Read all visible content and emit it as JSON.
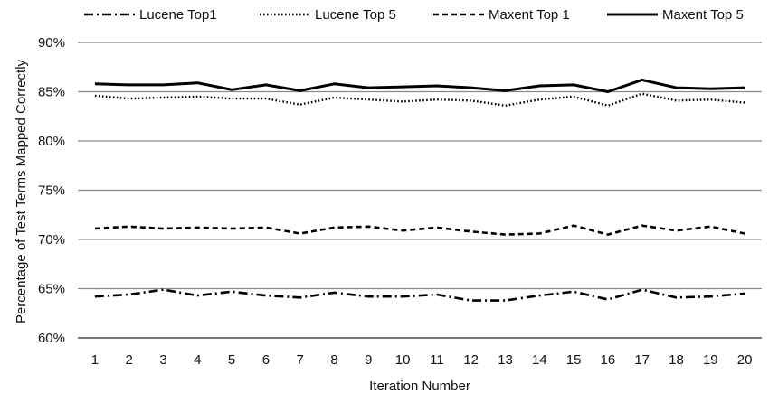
{
  "chart_data": {
    "type": "line",
    "xlabel": "Iteration Number",
    "ylabel": "Percentage of Test Terms Mapped Correctly",
    "ylim": [
      60,
      90
    ],
    "y_ticks": [
      "60%",
      "65%",
      "70%",
      "75%",
      "80%",
      "85%",
      "90%"
    ],
    "y_tick_values": [
      60,
      65,
      70,
      75,
      80,
      85,
      90
    ],
    "grid": "horizontal",
    "legend_position": "top",
    "categories": [
      "1",
      "2",
      "3",
      "4",
      "5",
      "6",
      "7",
      "8",
      "9",
      "10",
      "11",
      "12",
      "13",
      "14",
      "15",
      "16",
      "17",
      "18",
      "19",
      "20"
    ],
    "series": [
      {
        "name": "Lucene Top1",
        "style": "dash-dot",
        "color": "#000000",
        "values": [
          64.2,
          64.4,
          64.9,
          64.3,
          64.7,
          64.3,
          64.1,
          64.6,
          64.2,
          64.2,
          64.4,
          63.8,
          63.8,
          64.3,
          64.7,
          63.9,
          64.9,
          64.1,
          64.2,
          64.5
        ]
      },
      {
        "name": "Lucene Top 5",
        "style": "dotted",
        "color": "#000000",
        "values": [
          84.6,
          84.3,
          84.4,
          84.5,
          84.3,
          84.3,
          83.7,
          84.4,
          84.2,
          84.0,
          84.2,
          84.1,
          83.6,
          84.2,
          84.5,
          83.6,
          84.8,
          84.1,
          84.2,
          83.9
        ]
      },
      {
        "name": "Maxent Top 1",
        "style": "dashed",
        "color": "#000000",
        "values": [
          71.1,
          71.3,
          71.1,
          71.2,
          71.1,
          71.2,
          70.6,
          71.2,
          71.3,
          70.9,
          71.2,
          70.8,
          70.5,
          70.6,
          71.4,
          70.5,
          71.4,
          70.9,
          71.3,
          70.6
        ]
      },
      {
        "name": "Maxent Top 5",
        "style": "solid",
        "color": "#000000",
        "values": [
          85.8,
          85.7,
          85.7,
          85.9,
          85.2,
          85.7,
          85.1,
          85.8,
          85.4,
          85.5,
          85.6,
          85.4,
          85.1,
          85.6,
          85.7,
          85.0,
          86.2,
          85.4,
          85.3,
          85.4
        ]
      }
    ]
  }
}
